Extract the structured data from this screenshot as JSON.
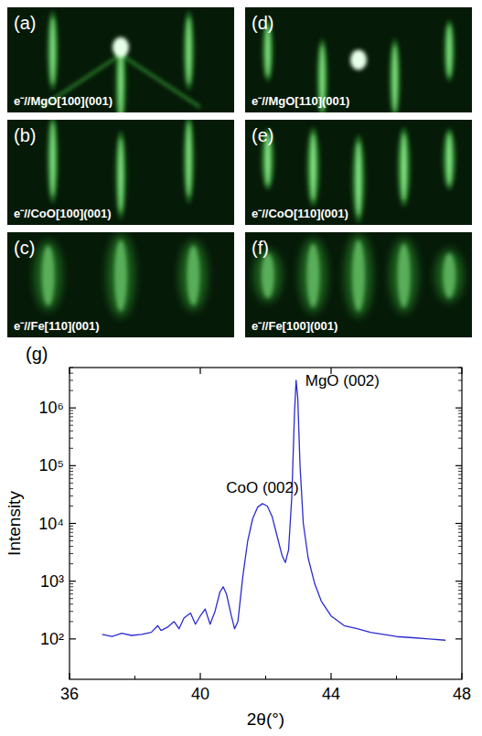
{
  "panels": [
    {
      "letter": "(a)",
      "label": "e⁻//MgO[100](001)"
    },
    {
      "letter": "(b)",
      "label": "e⁻//CoO[100](001)"
    },
    {
      "letter": "(c)",
      "label": "e⁻//Fe[110](001)"
    },
    {
      "letter": "(d)",
      "label": "e⁻//MgO[110](001)"
    },
    {
      "letter": "(e)",
      "label": "e⁻//CoO[110](001)"
    },
    {
      "letter": "(f)",
      "label": "e⁻//Fe[100](001)"
    }
  ],
  "chart_letter": "(g)",
  "chart_data": {
    "type": "line",
    "x_label": "2θ(°)",
    "y_label": "Intensity",
    "x": [
      37.0,
      37.3,
      37.6,
      37.9,
      38.2,
      38.5,
      38.7,
      38.8,
      39.0,
      39.2,
      39.35,
      39.5,
      39.7,
      39.85,
      40.0,
      40.15,
      40.3,
      40.45,
      40.6,
      40.7,
      40.8,
      40.95,
      41.05,
      41.15,
      41.3,
      41.45,
      41.6,
      41.75,
      41.9,
      42.05,
      42.2,
      42.35,
      42.5,
      42.6,
      42.7,
      42.8,
      42.88,
      42.93,
      42.98,
      43.05,
      43.15,
      43.3,
      43.5,
      43.7,
      44.0,
      44.4,
      44.8,
      45.2,
      45.6,
      46.0,
      46.5,
      47.0,
      47.5
    ],
    "values": [
      120,
      110,
      125,
      115,
      120,
      130,
      170,
      140,
      160,
      200,
      150,
      230,
      280,
      180,
      250,
      330,
      180,
      300,
      650,
      800,
      600,
      250,
      150,
      200,
      1200,
      5000,
      12000,
      19000,
      22000,
      20000,
      13000,
      6000,
      2800,
      2100,
      3500,
      30000,
      800000,
      3000000,
      1500000,
      100000,
      10000,
      2500,
      900,
      450,
      250,
      170,
      150,
      130,
      120,
      110,
      105,
      100,
      95
    ],
    "color": "#2b2bd0",
    "xlim": [
      36,
      48
    ],
    "xticks": [
      36,
      40,
      44,
      48
    ],
    "ylim": [
      20,
      5000000
    ],
    "yticks": [
      {
        "value": 100,
        "label": "10²"
      },
      {
        "value": 1000,
        "label": "10³"
      },
      {
        "value": 10000,
        "label": "10⁴"
      },
      {
        "value": 100000,
        "label": "10⁵"
      },
      {
        "value": 1000000,
        "label": "10⁶"
      }
    ],
    "log": "y",
    "annotations": [
      {
        "text": "CoO (002)",
        "x": 41.9,
        "y": 22000
      },
      {
        "text": "MgO (002)",
        "x": 42.93,
        "y": 3000000
      }
    ]
  }
}
